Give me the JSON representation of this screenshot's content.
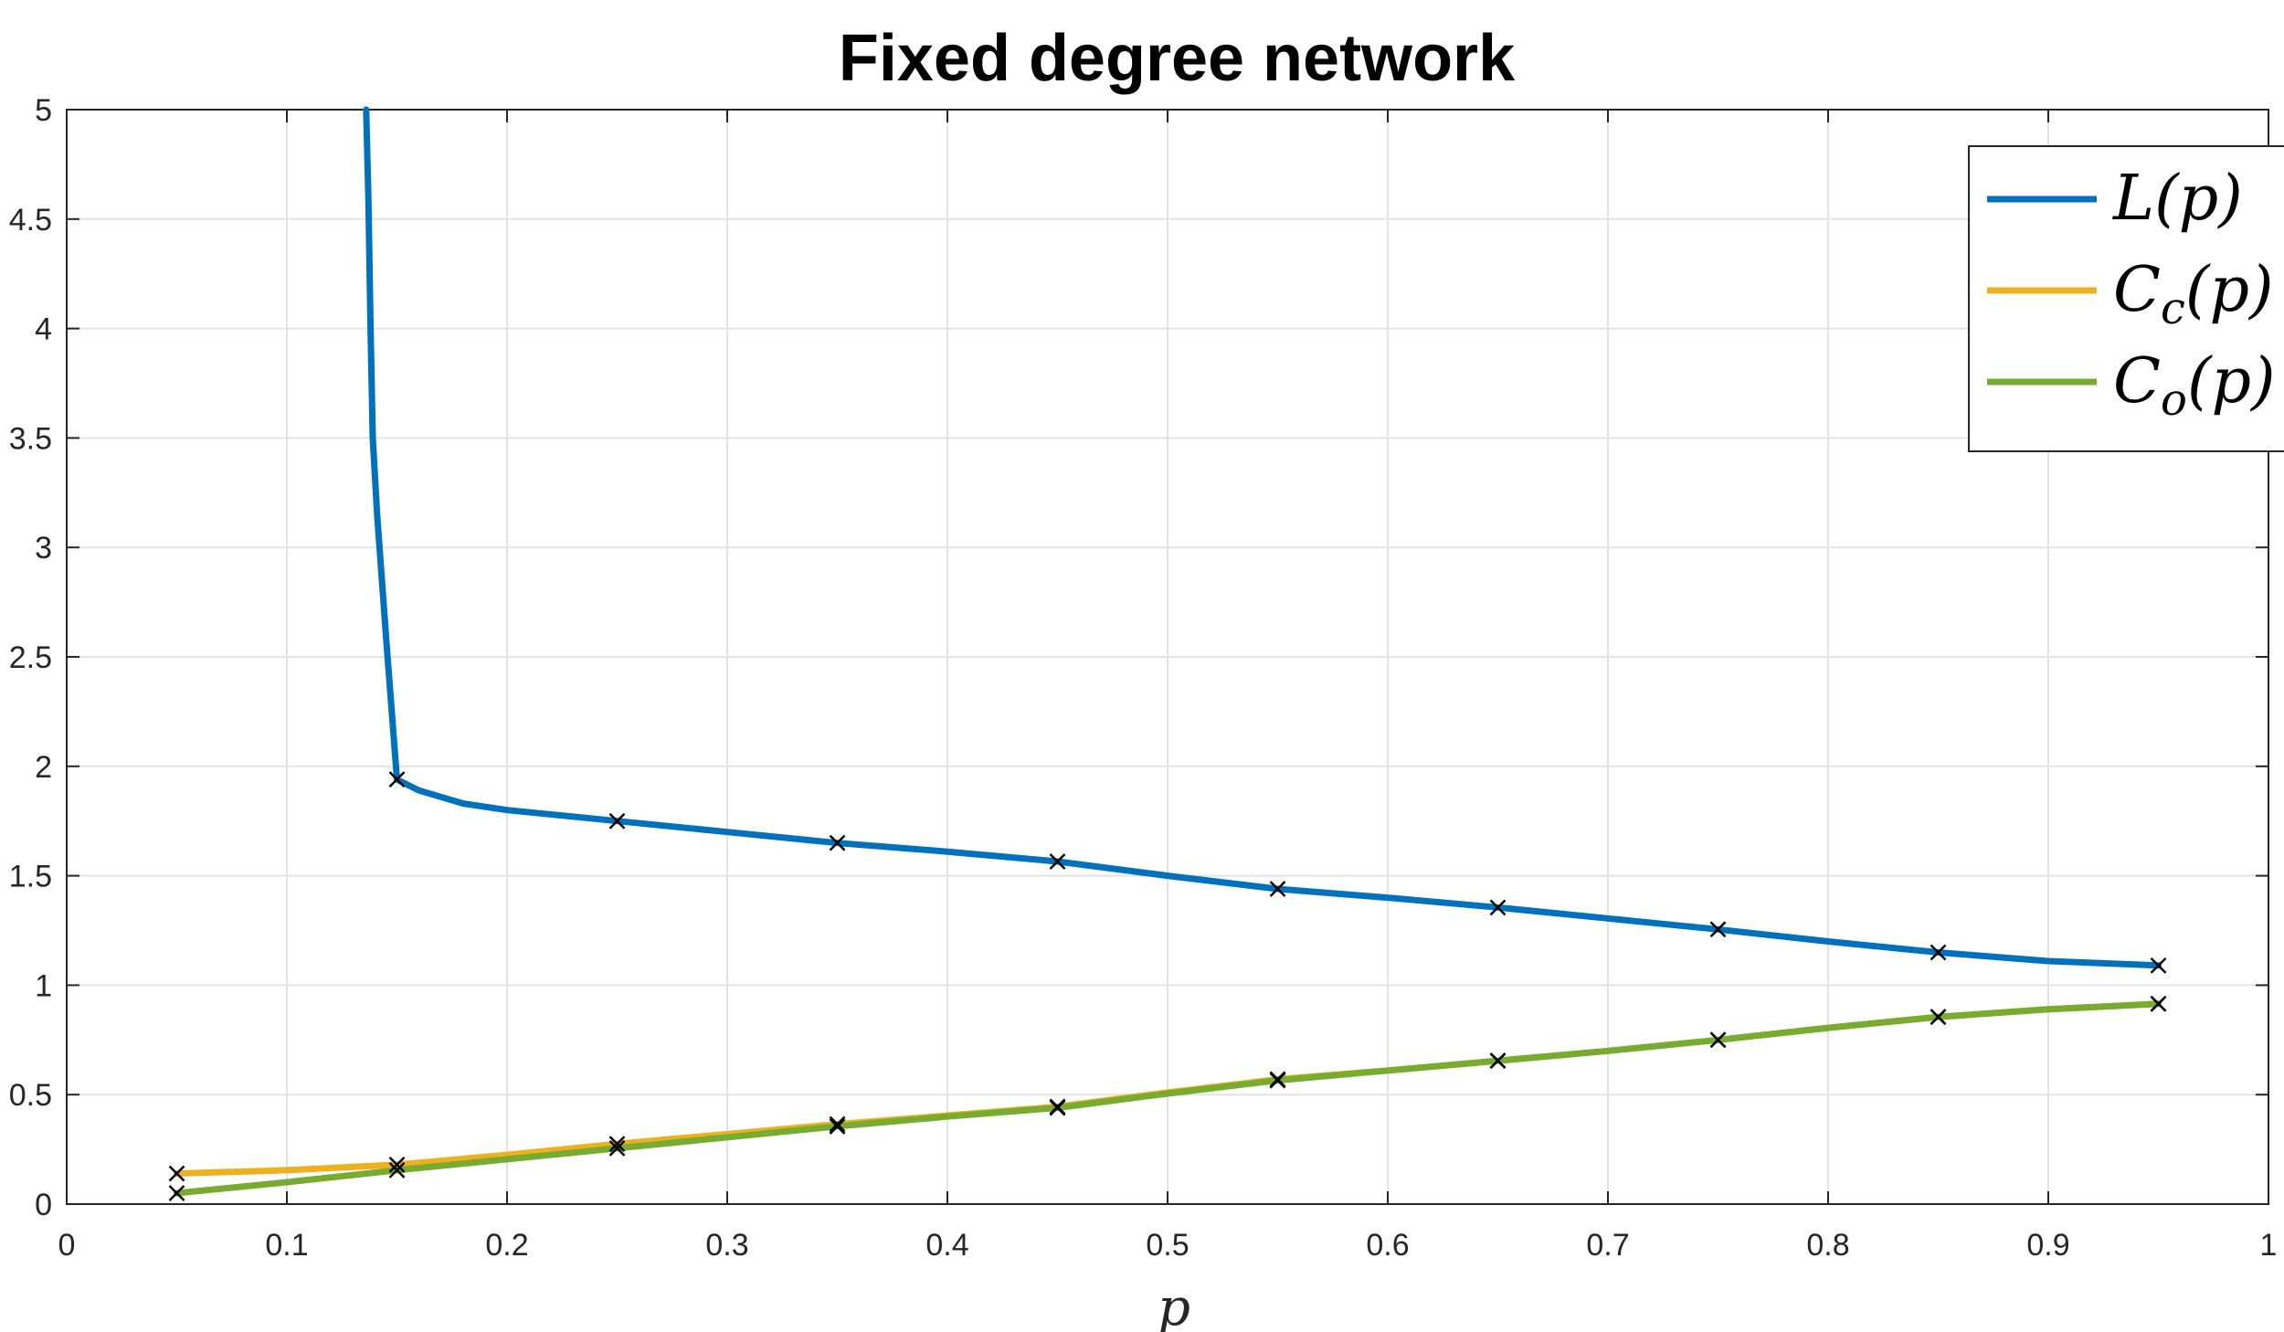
{
  "chart_data": {
    "type": "line",
    "title": "Fixed degree network",
    "xlabel": "p",
    "ylabel": "",
    "xlim": [
      0,
      1
    ],
    "ylim": [
      0,
      5
    ],
    "xticks": [
      0,
      0.1,
      0.2,
      0.3,
      0.4,
      0.5,
      0.6,
      0.7,
      0.8,
      0.9,
      1
    ],
    "xtick_labels": [
      "0",
      "0.1",
      "0.2",
      "0.3",
      "0.4",
      "0.5",
      "0.6",
      "0.7",
      "0.8",
      "0.9",
      "1"
    ],
    "yticks": [
      0,
      0.5,
      1,
      1.5,
      2,
      2.5,
      3,
      3.5,
      4,
      4.5,
      5
    ],
    "ytick_labels": [
      "0",
      "0.5",
      "1",
      "1.5",
      "2",
      "2.5",
      "3",
      "3.5",
      "4",
      "4.5",
      "5"
    ],
    "grid": true,
    "legend_position": "top-right",
    "series": [
      {
        "name": "L(p)",
        "legend_main": "L",
        "legend_sub": "",
        "legend_tail": "(p)",
        "color": "#0072BD",
        "x": [
          0.136,
          0.137,
          0.138,
          0.139,
          0.141,
          0.145,
          0.15,
          0.16,
          0.18,
          0.2,
          0.25,
          0.3,
          0.35,
          0.4,
          0.45,
          0.5,
          0.55,
          0.6,
          0.65,
          0.7,
          0.75,
          0.8,
          0.85,
          0.9,
          0.95
        ],
        "y": [
          5.0,
          4.6,
          4.0,
          3.5,
          3.15,
          2.6,
          1.94,
          1.89,
          1.83,
          1.8,
          1.75,
          1.7,
          1.65,
          1.61,
          1.565,
          1.5,
          1.44,
          1.4,
          1.355,
          1.305,
          1.255,
          1.2,
          1.15,
          1.11,
          1.09
        ],
        "markers_x": [
          0.15,
          0.25,
          0.35,
          0.45,
          0.55,
          0.65,
          0.75,
          0.85,
          0.95
        ],
        "markers_y": [
          1.94,
          1.75,
          1.65,
          1.565,
          1.44,
          1.355,
          1.255,
          1.15,
          1.09
        ]
      },
      {
        "name": "Cc(p)",
        "legend_main": "C",
        "legend_sub": "c",
        "legend_tail": "(p)",
        "color": "#EDB120",
        "x": [
          0.05,
          0.1,
          0.15,
          0.2,
          0.25,
          0.3,
          0.35,
          0.4,
          0.45,
          0.5,
          0.55,
          0.6,
          0.65,
          0.7,
          0.75,
          0.8,
          0.85,
          0.9,
          0.95
        ],
        "y": [
          0.14,
          0.155,
          0.18,
          0.225,
          0.275,
          0.32,
          0.365,
          0.405,
          0.445,
          0.51,
          0.57,
          0.61,
          0.655,
          0.7,
          0.75,
          0.805,
          0.855,
          0.89,
          0.915
        ],
        "markers_x": [
          0.05,
          0.15,
          0.25,
          0.35,
          0.45,
          0.55,
          0.65,
          0.75,
          0.85,
          0.95
        ],
        "markers_y": [
          0.14,
          0.18,
          0.275,
          0.365,
          0.445,
          0.57,
          0.655,
          0.75,
          0.855,
          0.915
        ]
      },
      {
        "name": "Co(p)",
        "legend_main": "C",
        "legend_sub": "o",
        "legend_tail": "(p)",
        "color": "#77AC30",
        "x": [
          0.05,
          0.1,
          0.15,
          0.2,
          0.25,
          0.3,
          0.35,
          0.4,
          0.45,
          0.5,
          0.55,
          0.6,
          0.65,
          0.7,
          0.75,
          0.8,
          0.85,
          0.9,
          0.95
        ],
        "y": [
          0.05,
          0.1,
          0.155,
          0.205,
          0.255,
          0.305,
          0.355,
          0.4,
          0.44,
          0.505,
          0.565,
          0.61,
          0.655,
          0.7,
          0.75,
          0.805,
          0.855,
          0.89,
          0.915
        ],
        "markers_x": [
          0.05,
          0.15,
          0.25,
          0.35,
          0.45,
          0.55,
          0.65,
          0.75,
          0.85,
          0.95
        ],
        "markers_y": [
          0.05,
          0.155,
          0.255,
          0.355,
          0.44,
          0.565,
          0.655,
          0.75,
          0.855,
          0.915
        ]
      }
    ]
  }
}
